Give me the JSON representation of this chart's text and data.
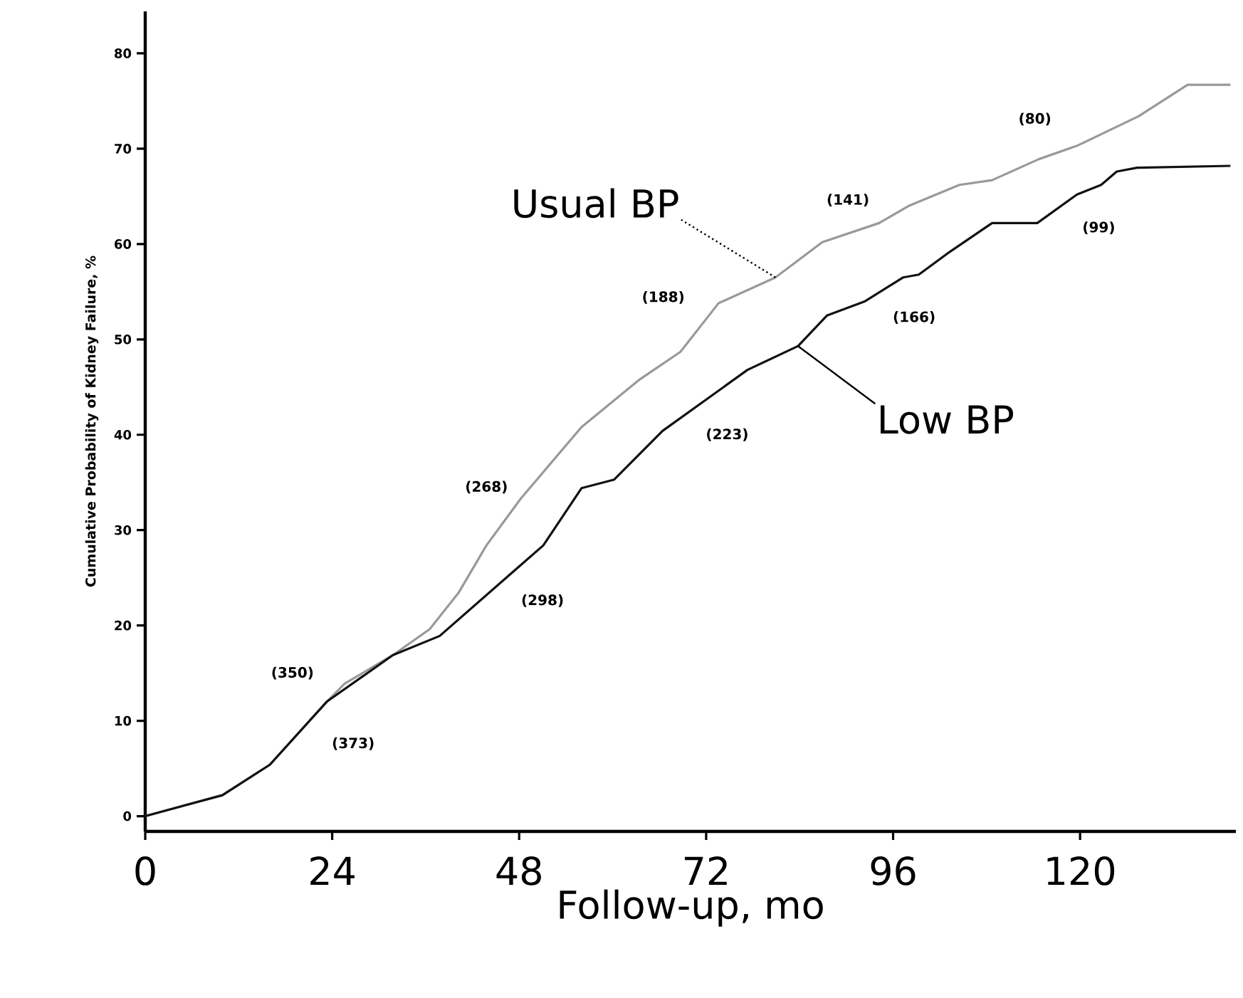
{
  "chart_data": {
    "type": "line",
    "xlabel": "Follow-up, mo",
    "ylabel": "Cumulative Probability of Kidney Failure, %",
    "xlim": [
      0,
      140
    ],
    "ylim": [
      -1.6,
      84.4
    ],
    "xticks": [
      0,
      24,
      48,
      72,
      96,
      120
    ],
    "yticks": [
      0,
      10,
      20,
      30,
      40,
      50,
      60,
      70,
      80
    ],
    "series": [
      {
        "name": "Usual BP",
        "color": "#999999",
        "x": [
          0,
          9.9,
          16,
          23.3,
          25.6,
          31.8,
          36.5,
          40.2,
          43.8,
          48.2,
          56,
          63.3,
          68.7,
          73.6,
          80.9,
          86.9,
          94.2,
          98,
          104.5,
          108.7,
          114.7,
          119.6,
          127.5,
          133.8,
          139.3
        ],
        "values": [
          0,
          2.2,
          5.4,
          12,
          13.9,
          16.9,
          19.6,
          23.4,
          28.4,
          33.3,
          40.8,
          45.7,
          48.7,
          53.8,
          56.5,
          60.2,
          62.2,
          64,
          66.2,
          66.7,
          68.9,
          70.3,
          73.4,
          76.7,
          76.7
        ]
      },
      {
        "name": "Low BP",
        "color": "#111111",
        "x": [
          0,
          9.9,
          16,
          23.3,
          31.8,
          37.8,
          46.9,
          51.1,
          56,
          60.2,
          66.4,
          77.3,
          83.8,
          87.5,
          92.4,
          97.3,
          99.3,
          103.3,
          108.7,
          114.5,
          119.6,
          122.7,
          124.7,
          127.3,
          139.3
        ],
        "values": [
          0,
          2.2,
          5.4,
          12,
          16.9,
          18.9,
          25.4,
          28.4,
          34.4,
          35.3,
          40.4,
          46.8,
          49.3,
          52.5,
          54,
          56.5,
          56.8,
          59.2,
          62.2,
          62.2,
          65.2,
          66.2,
          67.6,
          68,
          68.2
        ]
      }
    ],
    "annotations": [
      "(350)",
      "(373)",
      "(268)",
      "(298)",
      "(188)",
      "(223)",
      "(141)",
      "(166)",
      "(80)",
      "(99)"
    ]
  }
}
